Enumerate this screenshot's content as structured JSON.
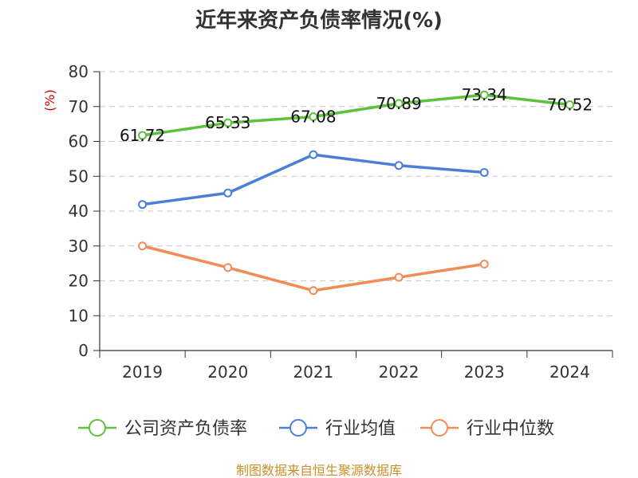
{
  "title": "近年来资产负债率情况(%)",
  "source": "制图数据来自恒生聚源数据库",
  "chart_data": {
    "type": "line",
    "title": "近年来资产负债率情况(%)",
    "ylabel": "(%)",
    "xlabel": "",
    "categories": [
      "2019",
      "2020",
      "2021",
      "2022",
      "2023",
      "2024"
    ],
    "ylim": [
      0,
      80
    ],
    "yticks": [
      0,
      10,
      20,
      30,
      40,
      50,
      60,
      70,
      80
    ],
    "grid": true,
    "legend_position": "bottom",
    "series": [
      {
        "name": "公司资产负债率",
        "color": "#5cc23c",
        "values": [
          61.72,
          65.33,
          67.08,
          70.89,
          73.34,
          70.52
        ],
        "labels": [
          "61.72",
          "65.33",
          "67.08",
          "70.89",
          "73.34",
          "70.52"
        ]
      },
      {
        "name": "行业均值",
        "color": "#4a7fd8",
        "values": [
          41.9,
          45.2,
          56.2,
          53.1,
          51.1,
          null
        ]
      },
      {
        "name": "行业中位数",
        "color": "#f28c57",
        "values": [
          30.0,
          23.8,
          17.2,
          21.0,
          24.8,
          null
        ]
      }
    ]
  }
}
